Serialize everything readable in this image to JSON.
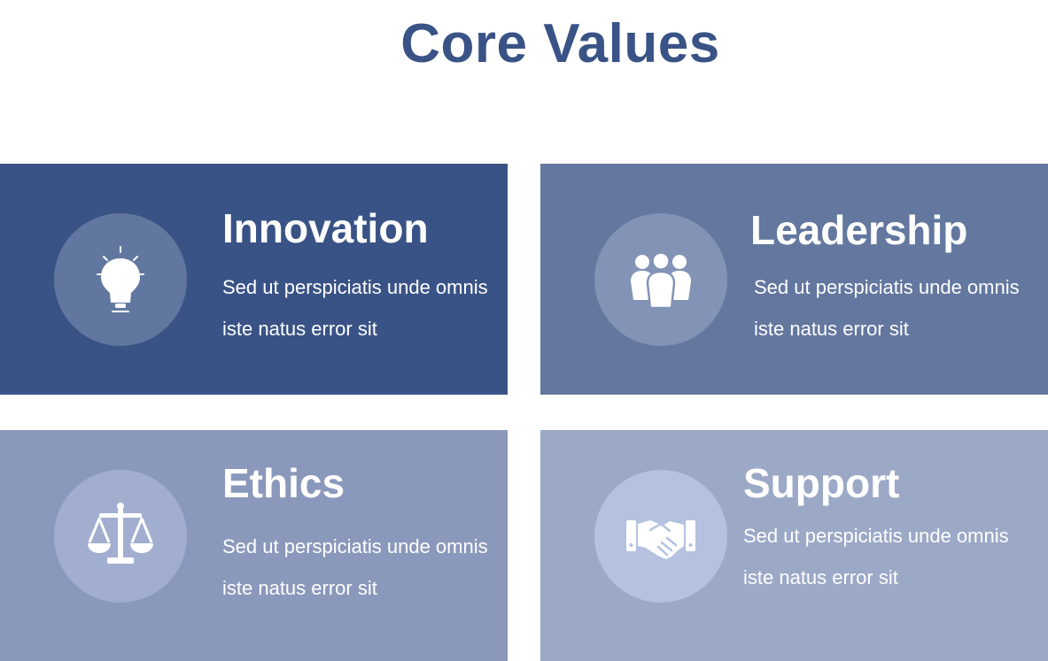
{
  "page": {
    "title": "Core Values"
  },
  "cards": [
    {
      "title": "Innovation",
      "description": "Sed ut perspiciatis unde omnis iste natus error sit",
      "icon": "lightbulb-icon",
      "bg_color": "#3a5386",
      "circle_color": "#6177a0"
    },
    {
      "title": "Leadership",
      "description": "Sed ut perspiciatis unde omnis iste natus error sit",
      "icon": "team-icon",
      "bg_color": "#63779f",
      "circle_color": "#8293b6"
    },
    {
      "title": "Ethics",
      "description": "Sed ut perspiciatis unde omnis iste natus error sit",
      "icon": "scales-icon",
      "bg_color": "#8a98bb",
      "circle_color": "#a1aed0"
    },
    {
      "title": "Support",
      "description": "Sed ut perspiciatis unde omnis iste natus error sit",
      "icon": "handshake-icon",
      "bg_color": "#9ba9c7",
      "circle_color": "#b4c2e0"
    }
  ]
}
